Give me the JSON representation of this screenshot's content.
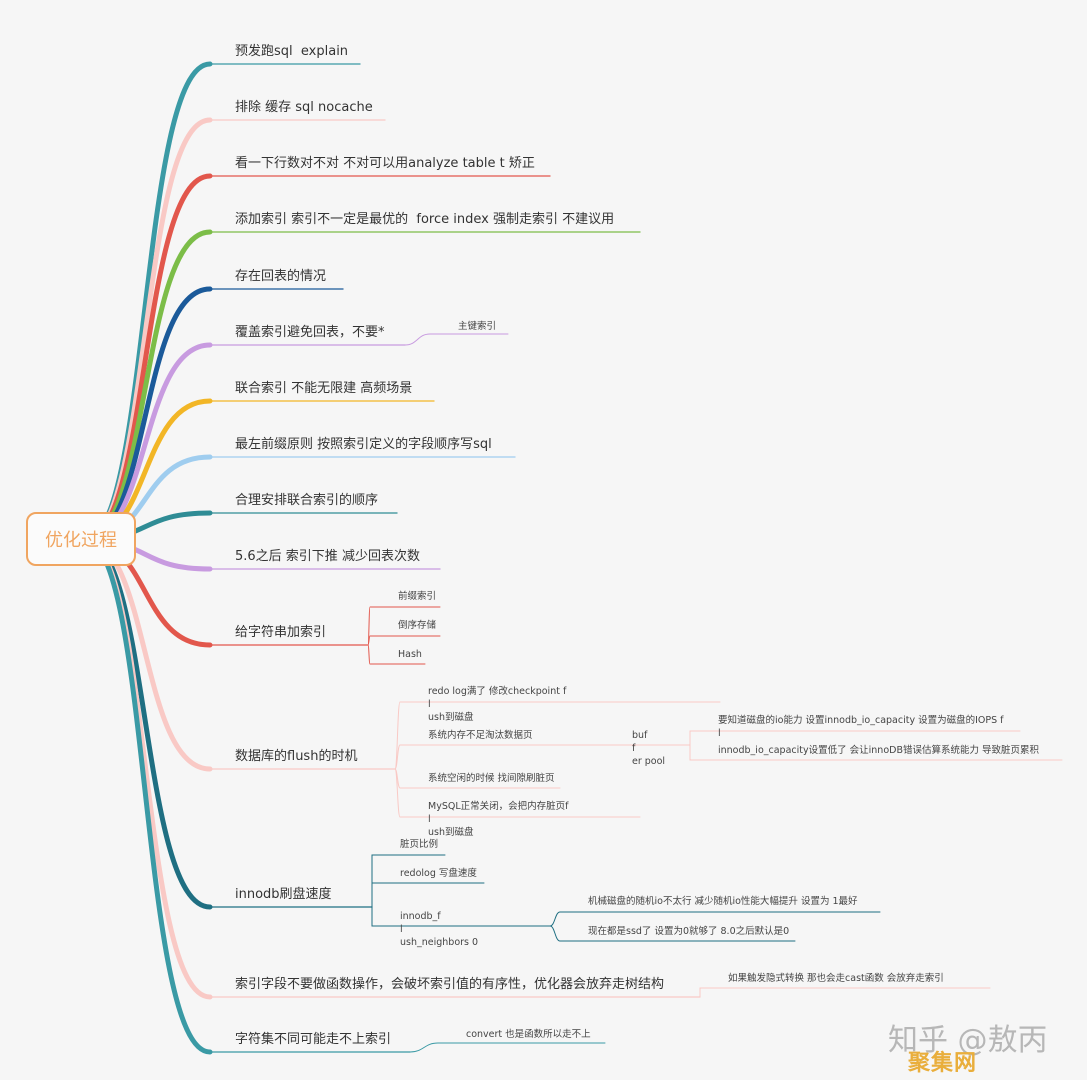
{
  "root": {
    "label": "优化过程",
    "color": "#f0a560"
  },
  "branches": [
    {
      "label": "预发跑sql  explain",
      "color": "#3a9aa5",
      "children": []
    },
    {
      "label": "排除 缓存 sql nocache",
      "color": "#f9c9c5",
      "children": []
    },
    {
      "label": "看一下行数对不对 不对可以用analyze table t 矫正",
      "color": "#e2574c",
      "children": []
    },
    {
      "label": "添加索引 索引不一定是最优的  force index 强制走索引 不建议用",
      "color": "#7cbd48",
      "children": []
    },
    {
      "label": "存在回表的情况",
      "color": "#1b5a9a",
      "children": []
    },
    {
      "label": "覆盖索引避免回表，不要*",
      "color": "#c89be0",
      "children": [
        {
          "label": "主键索引",
          "children": []
        }
      ]
    },
    {
      "label": "联合索引 不能无限建 高频场景",
      "color": "#f2b626",
      "children": []
    },
    {
      "label": "最左前缀原则 按照索引定义的字段顺序写sql",
      "color": "#9fcdef",
      "children": []
    },
    {
      "label": "合理安排联合索引的顺序",
      "color": "#2f8c95",
      "children": []
    },
    {
      "label": "5.6之后 索引下推 减少回表次数",
      "color": "#c89be0",
      "children": []
    },
    {
      "label": "给字符串加索引",
      "color": "#e2574c",
      "children": [
        {
          "label": "前缀索引",
          "children": []
        },
        {
          "label": "倒序存储",
          "children": []
        },
        {
          "label": "Hash",
          "children": []
        }
      ]
    },
    {
      "label": "数据库的flush的时机",
      "color": "#f9c9c5",
      "children": [
        {
          "label": "redo log满了 修改checkpoint f\nl\nush到磁盘",
          "children": []
        },
        {
          "label": "系统内存不足淘汰数据页",
          "children": [
            {
              "label": "buf\nf\ner pool",
              "children": [
                {
                  "label": "要知道磁盘的io能力 设置innodb_io_capacity 设置为磁盘的IOPS f\nl"
                },
                {
                  "label": "innodb_io_capacity设置低了 会让innoDB错误估算系统能力 导致脏页累积"
                }
              ]
            }
          ]
        },
        {
          "label": "系统空闲的时候 找间隙刷脏页",
          "children": []
        },
        {
          "label": "MySQL正常关闭，会把内存脏页f\nl\nush到磁盘",
          "children": []
        }
      ]
    },
    {
      "label": "innodb刷盘速度",
      "color": "#1f6f82",
      "children": [
        {
          "label": "脏页比例",
          "children": []
        },
        {
          "label": "redolog 写盘速度",
          "children": []
        },
        {
          "label": "innodb_f\nl\nush_neighbors 0",
          "children": [
            {
              "label": "机械磁盘的随机io不太行 减少随机io性能大幅提升 设置为 1最好"
            },
            {
              "label": "现在都是ssd了 设置为0就够了 8.0之后默认是0"
            }
          ]
        }
      ]
    },
    {
      "label": "索引字段不要做函数操作，会破坏索引值的有序性，优化器会放弃走树结构",
      "color": "#f9c9c5",
      "children": [
        {
          "label": "如果触发隐式转换 那也会走cast函数 会放弃走索引",
          "children": []
        }
      ]
    },
    {
      "label": "字符集不同可能走不上索引",
      "color": "#3a9aa5",
      "children": [
        {
          "label": "convert 也是函数所以走不上",
          "children": []
        }
      ]
    }
  ],
  "watermark": {
    "text": "知乎 @敖丙",
    "logo": "聚集网"
  }
}
